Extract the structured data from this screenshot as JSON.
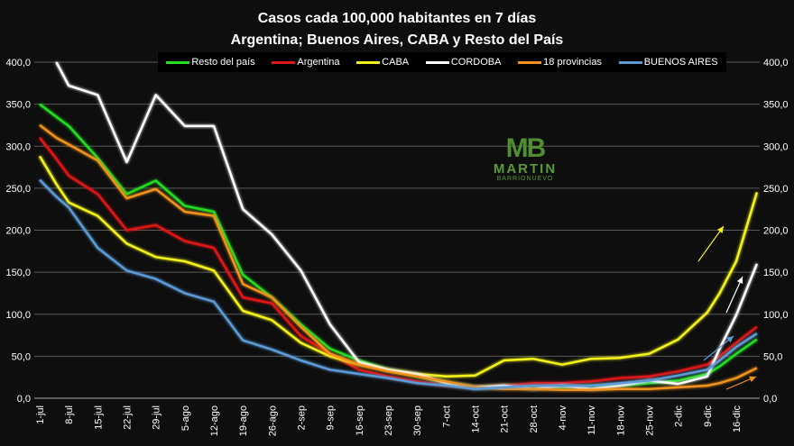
{
  "chart_data": {
    "type": "line",
    "title": "Casos cada 100,000  habitantes en 7 días",
    "subtitle": "Argentina; Buenos Aires, CABA y Resto del País",
    "xlabel": "",
    "ylabel": "",
    "ylim": [
      0,
      400
    ],
    "y_ticks": [
      "0,0",
      "50,0",
      "100,0",
      "150,0",
      "200,0",
      "250,0",
      "300,0",
      "350,0",
      "400,0"
    ],
    "x_ticks": [
      "1-jul",
      "8-jul",
      "15-jul",
      "22-jul",
      "29-jul",
      "5-ago",
      "12-ago",
      "19-ago",
      "26-ago",
      "2-sep",
      "9-sep",
      "16-sep",
      "23-sep",
      "30-sep",
      "7-oct",
      "14-oct",
      "21-oct",
      "28-oct",
      "4-nov",
      "11-nov",
      "18-nov",
      "25-nov",
      "2-dic",
      "9-dic",
      "16-dic"
    ],
    "grid": true,
    "legend_position": "top",
    "x": [
      "1-jul",
      "5-jul",
      "8-jul",
      "15-jul",
      "22-jul",
      "29-jul",
      "5-ago",
      "12-ago",
      "19-ago",
      "26-ago",
      "2-sep",
      "9-sep",
      "16-sep",
      "23-sep",
      "30-sep",
      "7-oct",
      "14-oct",
      "21-oct",
      "28-oct",
      "4-nov",
      "11-nov",
      "18-nov",
      "25-nov",
      "2-dic",
      "9-dic",
      "12-dic",
      "16-dic",
      "21-dic"
    ],
    "series": [
      {
        "name": "Resto del país",
        "color": "#22dd22",
        "values": [
          350,
          335,
          324,
          286,
          243,
          259,
          229,
          222,
          147,
          120,
          88,
          59,
          45,
          34,
          26,
          19,
          13,
          15,
          15,
          13,
          15,
          15,
          18,
          21,
          29,
          38,
          53,
          70
        ]
      },
      {
        "name": "Argentina",
        "color": "#e01818",
        "values": [
          310,
          285,
          265,
          243,
          200,
          206,
          187,
          179,
          120,
          113,
          74,
          53,
          34,
          26,
          20,
          15,
          13,
          15,
          18,
          18,
          20,
          24,
          26,
          32,
          40,
          50,
          66,
          85
        ]
      },
      {
        "name": "CABA",
        "color": "#f2f21a",
        "values": [
          288,
          255,
          233,
          217,
          184,
          168,
          163,
          152,
          104,
          93,
          66,
          50,
          40,
          34,
          29,
          26,
          27,
          45,
          47,
          40,
          47,
          48,
          53,
          70,
          102,
          125,
          163,
          245
        ]
      },
      {
        "name": "CORDOBA",
        "color": "#ffffff",
        "values": [
          null,
          400,
          372,
          361,
          281,
          361,
          324,
          324,
          225,
          195,
          152,
          88,
          43,
          34,
          29,
          18,
          13,
          15,
          11,
          15,
          11,
          15,
          21,
          17,
          26,
          59,
          99,
          160
        ]
      },
      {
        "name": "18 provincias",
        "color": "#f0921e",
        "values": [
          325,
          310,
          302,
          283,
          238,
          249,
          222,
          217,
          136,
          120,
          85,
          53,
          40,
          32,
          26,
          20,
          13,
          11,
          11,
          10,
          10,
          11,
          11,
          13,
          15,
          18,
          24,
          36
        ]
      },
      {
        "name": "BUENOS AIRES",
        "color": "#5b9bd5",
        "values": [
          260,
          240,
          227,
          179,
          152,
          142,
          125,
          115,
          69,
          58,
          45,
          34,
          29,
          24,
          18,
          15,
          11,
          13,
          15,
          15,
          15,
          18,
          21,
          27,
          34,
          45,
          61,
          77
        ]
      }
    ]
  },
  "logo": {
    "mark": "MB",
    "name": "MARTIN",
    "surname": "BARRIONUEVO"
  }
}
